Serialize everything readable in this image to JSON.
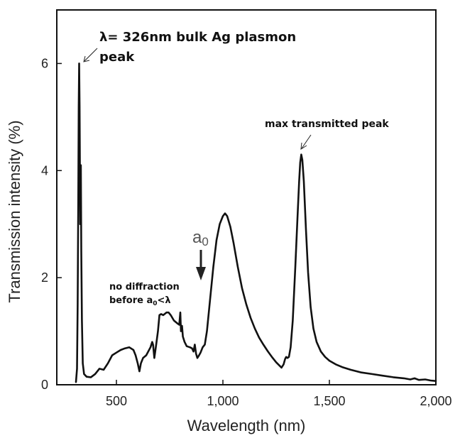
{
  "chart_data": {
    "type": "line",
    "title": "",
    "xlabel": "Wavelength (nm)",
    "ylabel": "Transmission intensity (%)",
    "xlim": [
      220,
      2000
    ],
    "ylim": [
      0,
      7.0
    ],
    "x_ticks": [
      {
        "value": 500,
        "label": "500"
      },
      {
        "value": 1000,
        "label": "1,000"
      },
      {
        "value": 1500,
        "label": "1,500"
      },
      {
        "value": 2000,
        "label": "2,000"
      }
    ],
    "y_ticks": [
      {
        "value": 0,
        "label": "0"
      },
      {
        "value": 2,
        "label": "2"
      },
      {
        "value": 4,
        "label": "4"
      },
      {
        "value": 6,
        "label": "6"
      }
    ],
    "grid": false,
    "series": [
      {
        "name": "transmission",
        "color": "#111111",
        "points": [
          [
            310,
            0.05
          ],
          [
            315,
            0.3
          ],
          [
            318,
            1.5
          ],
          [
            321,
            3.5
          ],
          [
            323,
            5.2
          ],
          [
            325,
            6.0
          ],
          [
            327,
            5.2
          ],
          [
            330,
            3.0
          ],
          [
            331,
            3.8
          ],
          [
            333,
            4.1
          ],
          [
            335,
            2.5
          ],
          [
            338,
            1.2
          ],
          [
            342,
            0.4
          ],
          [
            348,
            0.2
          ],
          [
            360,
            0.15
          ],
          [
            380,
            0.14
          ],
          [
            400,
            0.2
          ],
          [
            420,
            0.3
          ],
          [
            440,
            0.28
          ],
          [
            460,
            0.4
          ],
          [
            480,
            0.55
          ],
          [
            500,
            0.6
          ],
          [
            520,
            0.65
          ],
          [
            540,
            0.68
          ],
          [
            560,
            0.7
          ],
          [
            580,
            0.65
          ],
          [
            590,
            0.55
          ],
          [
            600,
            0.4
          ],
          [
            608,
            0.25
          ],
          [
            615,
            0.4
          ],
          [
            625,
            0.5
          ],
          [
            640,
            0.55
          ],
          [
            660,
            0.7
          ],
          [
            668,
            0.8
          ],
          [
            672,
            0.75
          ],
          [
            678,
            0.5
          ],
          [
            685,
            0.7
          ],
          [
            695,
            1.0
          ],
          [
            702,
            1.3
          ],
          [
            710,
            1.32
          ],
          [
            720,
            1.3
          ],
          [
            735,
            1.35
          ],
          [
            745,
            1.35
          ],
          [
            755,
            1.3
          ],
          [
            770,
            1.2
          ],
          [
            785,
            1.15
          ],
          [
            795,
            1.12
          ],
          [
            800,
            1.35
          ],
          [
            803,
            1.0
          ],
          [
            808,
            1.1
          ],
          [
            812,
            0.9
          ],
          [
            820,
            0.8
          ],
          [
            830,
            0.72
          ],
          [
            845,
            0.7
          ],
          [
            855,
            0.68
          ],
          [
            862,
            0.62
          ],
          [
            868,
            0.75
          ],
          [
            874,
            0.58
          ],
          [
            880,
            0.5
          ],
          [
            888,
            0.55
          ],
          [
            895,
            0.6
          ],
          [
            905,
            0.7
          ],
          [
            915,
            0.75
          ],
          [
            925,
            1.0
          ],
          [
            940,
            1.6
          ],
          [
            955,
            2.2
          ],
          [
            970,
            2.7
          ],
          [
            985,
            3.0
          ],
          [
            1000,
            3.15
          ],
          [
            1010,
            3.2
          ],
          [
            1020,
            3.15
          ],
          [
            1035,
            2.95
          ],
          [
            1050,
            2.65
          ],
          [
            1070,
            2.2
          ],
          [
            1090,
            1.8
          ],
          [
            1110,
            1.5
          ],
          [
            1130,
            1.25
          ],
          [
            1150,
            1.05
          ],
          [
            1170,
            0.88
          ],
          [
            1190,
            0.75
          ],
          [
            1210,
            0.63
          ],
          [
            1230,
            0.52
          ],
          [
            1250,
            0.42
          ],
          [
            1265,
            0.36
          ],
          [
            1275,
            0.32
          ],
          [
            1285,
            0.38
          ],
          [
            1292,
            0.48
          ],
          [
            1297,
            0.52
          ],
          [
            1303,
            0.5
          ],
          [
            1310,
            0.52
          ],
          [
            1318,
            0.7
          ],
          [
            1328,
            1.2
          ],
          [
            1340,
            2.2
          ],
          [
            1350,
            3.1
          ],
          [
            1358,
            3.8
          ],
          [
            1363,
            4.15
          ],
          [
            1368,
            4.3
          ],
          [
            1373,
            4.2
          ],
          [
            1380,
            3.8
          ],
          [
            1390,
            2.9
          ],
          [
            1400,
            2.1
          ],
          [
            1412,
            1.45
          ],
          [
            1425,
            1.05
          ],
          [
            1440,
            0.8
          ],
          [
            1460,
            0.62
          ],
          [
            1480,
            0.52
          ],
          [
            1500,
            0.45
          ],
          [
            1530,
            0.38
          ],
          [
            1560,
            0.33
          ],
          [
            1600,
            0.28
          ],
          [
            1650,
            0.23
          ],
          [
            1700,
            0.2
          ],
          [
            1750,
            0.17
          ],
          [
            1800,
            0.14
          ],
          [
            1850,
            0.12
          ],
          [
            1880,
            0.1
          ],
          [
            1900,
            0.12
          ],
          [
            1920,
            0.09
          ],
          [
            1950,
            0.1
          ],
          [
            1975,
            0.08
          ],
          [
            2000,
            0.07
          ]
        ]
      }
    ],
    "annotations": {
      "plasmon": {
        "line1": "λ= 326nm bulk Ag plasmon",
        "line2": "peak",
        "x": 326,
        "y": 6.0
      },
      "max_peak": {
        "text": "max transmitted peak",
        "x": 1370,
        "y": 4.3
      },
      "diffraction": {
        "line1": "no diffraction",
        "line2_before": "before a",
        "line2_sub": "0",
        "line2_after": "<λ"
      },
      "a0": {
        "letter": "a",
        "sub": "0",
        "x": 880
      }
    }
  }
}
